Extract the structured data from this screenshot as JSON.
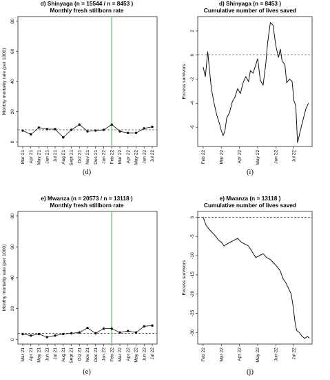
{
  "chart_data": [
    {
      "panel": "d",
      "type": "line",
      "title": "d) Shinyaga (n = 15544  / n = 8453 )",
      "subtitle": "Monthly fresh stillborn rate",
      "caption": "(d)",
      "xlabel": "",
      "ylabel": "Monthy mortality rate (per 1000)",
      "categories": [
        "Mar 21",
        "Apr 21",
        "May 21",
        "Jun 21",
        "Jul 21",
        "Aug 21",
        "Sept 21",
        "Oct 21",
        "Nov 21",
        "Dec 21",
        "Jan 22",
        "Feb 22",
        "Mar 22",
        "Apr 22",
        "May 22",
        "Jun 22",
        "Jul 22"
      ],
      "yticks": [
        0,
        20,
        40,
        60,
        80
      ],
      "ylim": [
        -3,
        83
      ],
      "series": [
        {
          "values": [
            7.5,
            5,
            9.5,
            8.5,
            8.5,
            3,
            8,
            11.5,
            7,
            7.5,
            8,
            11.5,
            7,
            6,
            6,
            9,
            10
          ]
        }
      ],
      "reference_line": {
        "value": 8,
        "style": "dashed"
      },
      "intervention_line": {
        "category": "Feb 22",
        "color": "#7ccf7c"
      },
      "grid": false
    },
    {
      "panel": "i",
      "type": "line",
      "title": "d) Shinyaga (n = 8453 )",
      "subtitle": "Cumulative number of lives saved",
      "caption": "(i)",
      "xlabel": "",
      "ylabel": "Excess survivors",
      "xticks": [
        "Feb 22",
        "Mar 22",
        "Apr 22",
        "May 22",
        "Jun 22",
        "Jul 22"
      ],
      "yticks": [
        2,
        0,
        -2,
        -4,
        -6
      ],
      "ylim": [
        -7.6,
        3.2
      ],
      "xlim": [
        -0.3,
        6.0
      ],
      "reference_line": {
        "value": 0,
        "style": "dashed"
      },
      "series": [
        {
          "x": [
            0,
            0.12,
            0.25,
            0.45,
            0.6,
            0.75,
            0.9,
            1.0,
            1.1,
            1.2,
            1.3,
            1.45,
            1.6,
            1.75,
            1.9,
            2.05,
            2.2,
            2.35,
            2.5,
            2.6,
            2.75,
            2.9,
            3.0,
            3.15,
            3.3,
            3.45,
            3.55,
            3.7,
            3.85,
            4.0,
            4.15,
            4.25,
            4.35,
            4.5,
            4.6,
            4.75,
            4.9,
            5.0,
            5.1,
            5.2,
            5.35,
            5.5,
            5.65,
            5.8
          ],
          "y": [
            -1,
            -1.8,
            0.3,
            -2.8,
            -4,
            -5,
            -5.7,
            -6.3,
            -6.7,
            -6.3,
            -5.2,
            -4.8,
            -3.9,
            -3.5,
            -2.8,
            -3.2,
            -2.3,
            -1.8,
            -2.2,
            -1.3,
            -1.5,
            -0.8,
            -0.3,
            -2.1,
            -2.5,
            -0.7,
            1.0,
            2.7,
            2.5,
            0.8,
            -0.2,
            0.5,
            -0.5,
            -0.8,
            -2.3,
            -2.0,
            -2.2,
            -3.8,
            -4.2,
            -7.3,
            -6.3,
            -5.4,
            -4.5,
            -4.0
          ]
        }
      ],
      "grid": false
    },
    {
      "panel": "e",
      "type": "line",
      "title": "e) Mwanza (n = 20573  / n = 13118 )",
      "subtitle": "Monthly fresh stillborn rate",
      "caption": "(e)",
      "xlabel": "",
      "ylabel": "Monthy mortality rate (per 1000)",
      "categories": [
        "Mar 21",
        "Apr 21",
        "May 21",
        "Jun 21",
        "Jul 21",
        "Aug 21",
        "Sept 21",
        "Oct 21",
        "Nov 21",
        "Dec 21",
        "Jan 22",
        "Feb 22",
        "Mar 22",
        "Apr 22",
        "May 22",
        "Jun 22",
        "Jul 22"
      ],
      "yticks": [
        0,
        20,
        40,
        60,
        80
      ],
      "ylim": [
        -3,
        83
      ],
      "series": [
        {
          "values": [
            3.5,
            2.5,
            3.5,
            1.5,
            2.5,
            3.5,
            4,
            4.5,
            7.5,
            4,
            7,
            7,
            4.5,
            5.5,
            4.5,
            8.5,
            9
          ]
        }
      ],
      "reference_line": {
        "value": 4,
        "style": "dashed"
      },
      "intervention_line": {
        "category": "Feb 22",
        "color": "#7ccf7c"
      },
      "grid": false
    },
    {
      "panel": "j",
      "type": "line",
      "title": "e) Mwanza (n = 13118 )",
      "subtitle": "Cumulative number of lives saved",
      "caption": "(j)",
      "xlabel": "",
      "ylabel": "Excess survivors",
      "xticks": [
        "Feb 22",
        "Mar 22",
        "Apr 22",
        "May 22",
        "Jun 22",
        "Jul 22"
      ],
      "yticks": [
        0,
        -5,
        -10,
        -15,
        -20,
        -25,
        -30
      ],
      "ylim": [
        -33,
        1.5
      ],
      "xlim": [
        -0.3,
        6.0
      ],
      "reference_line": {
        "value": 0,
        "style": "dashed"
      },
      "series": [
        {
          "x": [
            0,
            0.15,
            0.3,
            0.5,
            0.7,
            0.85,
            1.0,
            1.15,
            1.3,
            1.5,
            1.7,
            1.9,
            2.1,
            2.3,
            2.5,
            2.7,
            2.9,
            3.1,
            3.3,
            3.5,
            3.7,
            3.9,
            4.1,
            4.25,
            4.4,
            4.55,
            4.7,
            4.85,
            4.95,
            5.05,
            5.15,
            5.3,
            5.45,
            5.6,
            5.75,
            5.85
          ],
          "y": [
            0,
            -2,
            -3,
            -4,
            -5,
            -6,
            -6.5,
            -7.5,
            -7,
            -6.5,
            -6,
            -5.5,
            -6.5,
            -7,
            -7.5,
            -9,
            -10.5,
            -10,
            -9.5,
            -10.5,
            -11,
            -12,
            -13,
            -14,
            -16,
            -17,
            -18.5,
            -20,
            -23,
            -27,
            -29.5,
            -30,
            -31,
            -31.5,
            -31,
            -31.5
          ]
        }
      ],
      "grid": false
    }
  ]
}
